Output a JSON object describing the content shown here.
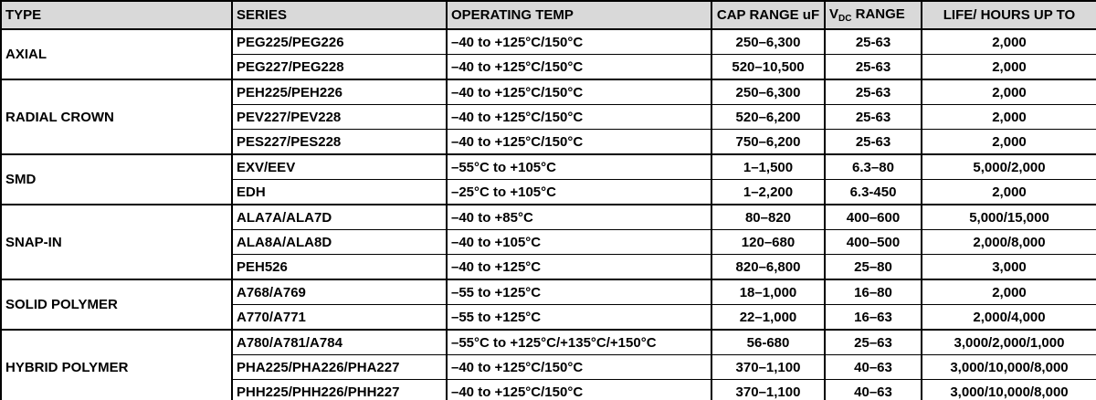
{
  "colors": {
    "header_bg": "#d9d9d9",
    "border": "#000000",
    "text": "#000000",
    "row_bg": "#ffffff"
  },
  "table": {
    "header": {
      "type": "TYPE",
      "series": "SERIES",
      "operating_temp": "OPERATING TEMP",
      "cap_range": "CAP RANGE uF",
      "vdc_prefix": "V",
      "vdc_sub": "DC",
      "vdc_suffix": " RANGE",
      "life": "LIFE/ HOURS UP TO"
    },
    "groups": [
      {
        "type": "AXIAL",
        "rows": [
          {
            "series": "PEG225/PEG226",
            "temp": "–40 to +125°C/150°C",
            "cap": "250–6,300",
            "vdc": "25-63",
            "life": "2,000"
          },
          {
            "series": "PEG227/PEG228",
            "temp": "–40 to +125°C/150°C",
            "cap": "520–10,500",
            "vdc": "25-63",
            "life": "2,000"
          }
        ]
      },
      {
        "type": "RADIAL CROWN",
        "rows": [
          {
            "series": "PEH225/PEH226",
            "temp": "–40 to +125°C/150°C",
            "cap": "250–6,300",
            "vdc": "25-63",
            "life": "2,000"
          },
          {
            "series": "PEV227/PEV228",
            "temp": "–40 to +125°C/150°C",
            "cap": "520–6,200",
            "vdc": "25-63",
            "life": "2,000"
          },
          {
            "series": "PES227/PES228",
            "temp": "–40 to +125°C/150°C",
            "cap": "750–6,200",
            "vdc": "25-63",
            "life": "2,000"
          }
        ]
      },
      {
        "type": "SMD",
        "rows": [
          {
            "series": "EXV/EEV",
            "temp": "–55°C to +105°C",
            "cap": "1–1,500",
            "vdc": "6.3–80",
            "life": "5,000/2,000"
          },
          {
            "series": "EDH",
            "temp": "–25°C to +105°C",
            "cap": "1–2,200",
            "vdc": "6.3-450",
            "life": "2,000"
          }
        ]
      },
      {
        "type": "SNAP-IN",
        "rows": [
          {
            "series": "ALA7A/ALA7D",
            "temp": "–40 to +85°C",
            "cap": "80–820",
            "vdc": "400–600",
            "life": "5,000/15,000"
          },
          {
            "series": "ALA8A/ALA8D",
            "temp": "–40 to +105°C",
            "cap": "120–680",
            "vdc": "400–500",
            "life": "2,000/8,000"
          },
          {
            "series": "PEH526",
            "temp": "–40 to +125°C",
            "cap": "820–6,800",
            "vdc": "25–80",
            "life": "3,000"
          }
        ]
      },
      {
        "type": "SOLID POLYMER",
        "rows": [
          {
            "series": "A768/A769",
            "temp": "–55 to +125°C",
            "cap": "18–1,000",
            "vdc": "16–80",
            "life": "2,000"
          },
          {
            "series": "A770/A771",
            "temp": "–55 to +125°C",
            "cap": "22–1,000",
            "vdc": "16–63",
            "life": "2,000/4,000"
          }
        ]
      },
      {
        "type": "HYBRID POLYMER",
        "rows": [
          {
            "series": "A780/A781/A784",
            "temp": "–55°C to +125°C/+135°C/+150°C",
            "cap": "56-680",
            "vdc": "25–63",
            "life": "3,000/2,000/1,000"
          },
          {
            "series": "PHA225/PHA226/PHA227",
            "temp": "–40 to +125°C/150°C",
            "cap": "370–1,100",
            "vdc": "40–63",
            "life": "3,000/10,000/8,000"
          },
          {
            "series": "PHH225/PHH226/PHH227",
            "temp": "–40 to +125°C/150°C",
            "cap": "370–1,100",
            "vdc": "40–63",
            "life": "3,000/10,000/8,000"
          }
        ]
      }
    ]
  }
}
